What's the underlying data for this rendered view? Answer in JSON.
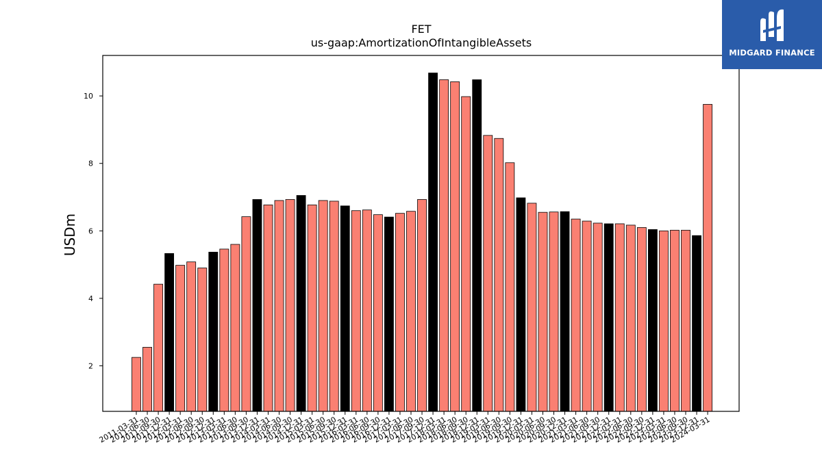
{
  "chart_data": {
    "type": "bar",
    "title": "FET",
    "subtitle": "us-gaap:AmortizationOfIntangibleAssets",
    "xlabel": "",
    "ylabel": "USDm",
    "ylim": [
      0.65,
      11.2
    ],
    "yticks": [
      2,
      4,
      6,
      8,
      10
    ],
    "grid": false,
    "legend": "none",
    "colors": {
      "quarter": "#fa8072",
      "fiscal_year_end": "#000000",
      "edge": "#000000"
    },
    "categories": [
      "2011-03-31",
      "2011-06-30",
      "2011-09-30",
      "2011-12-31",
      "2012-03-31",
      "2012-06-30",
      "2012-09-30",
      "2012-12-31",
      "2013-03-31",
      "2013-06-30",
      "2013-09-30",
      "2013-12-31",
      "2014-03-31",
      "2014-06-30",
      "2014-09-30",
      "2014-12-31",
      "2015-03-31",
      "2015-06-30",
      "2015-09-30",
      "2015-12-31",
      "2016-03-31",
      "2016-06-30",
      "2016-09-30",
      "2016-12-31",
      "2017-03-31",
      "2017-06-30",
      "2017-09-30",
      "2017-12-31",
      "2018-03-31",
      "2018-06-30",
      "2018-09-30",
      "2018-12-31",
      "2019-03-31",
      "2019-06-30",
      "2019-09-30",
      "2019-12-31",
      "2020-03-31",
      "2020-06-30",
      "2020-09-30",
      "2020-12-31",
      "2021-03-31",
      "2021-06-30",
      "2021-09-30",
      "2021-12-31",
      "2022-03-31",
      "2022-06-30",
      "2022-09-30",
      "2022-12-31",
      "2023-03-31",
      "2023-06-30",
      "2023-09-30",
      "2023-12-31",
      "2024-03-31"
    ],
    "values": [
      2.25,
      2.55,
      4.42,
      5.33,
      4.98,
      5.08,
      4.9,
      5.37,
      5.46,
      5.6,
      6.42,
      6.93,
      6.77,
      6.9,
      6.93,
      7.05,
      6.77,
      6.9,
      6.88,
      6.74,
      6.6,
      6.62,
      6.48,
      6.41,
      6.52,
      6.58,
      6.93,
      10.68,
      10.48,
      10.42,
      9.98,
      10.48,
      8.83,
      8.74,
      8.02,
      6.98,
      6.82,
      6.55,
      6.56,
      6.57,
      6.35,
      6.29,
      6.23,
      6.21,
      6.21,
      6.17,
      6.1,
      6.04,
      6.0,
      6.02,
      6.02,
      5.86,
      9.75
    ],
    "fiscal_year_end": [
      false,
      false,
      false,
      true,
      false,
      false,
      false,
      true,
      false,
      false,
      false,
      true,
      false,
      false,
      false,
      true,
      false,
      false,
      false,
      true,
      false,
      false,
      false,
      true,
      false,
      false,
      false,
      true,
      false,
      false,
      false,
      true,
      false,
      false,
      false,
      true,
      false,
      false,
      false,
      true,
      false,
      false,
      false,
      true,
      false,
      false,
      false,
      true,
      false,
      false,
      false,
      true,
      false
    ]
  },
  "logo": {
    "text": "MIDGARD FINANCE",
    "background": "#2a5caa"
  }
}
